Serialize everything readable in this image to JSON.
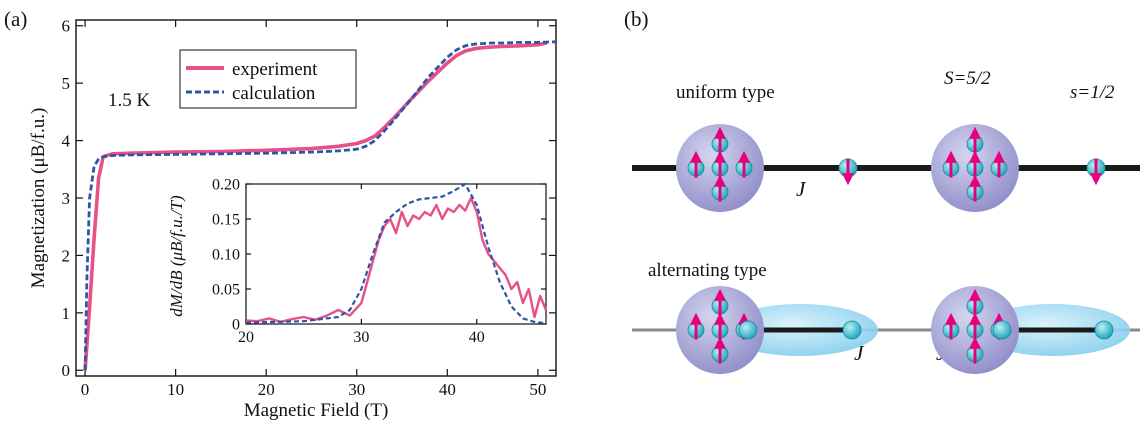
{
  "panel_a_label": "(a)",
  "panel_b_label": "(b)",
  "chart_data": [
    {
      "type": "line",
      "xlabel": "Magnetic Field  (T)",
      "ylabel": "Magnetization (μB/f.u.)",
      "xlim": [
        -1,
        52
      ],
      "ylim": [
        -0.1,
        6.1
      ],
      "xticks": [
        0,
        10,
        20,
        30,
        40,
        50
      ],
      "yticks": [
        0,
        1,
        2,
        3,
        4,
        5,
        6
      ],
      "annotation": "1.5 K",
      "legend": "top-center",
      "series": [
        {
          "name": "experiment",
          "color": "#e8508a",
          "style": "solid",
          "x": [
            0,
            0.5,
            1.0,
            1.5,
            2.0,
            3,
            5,
            10,
            15,
            20,
            25,
            28,
            30,
            31,
            32,
            33,
            34,
            36,
            38,
            40,
            41,
            42,
            43,
            44,
            45,
            46,
            48,
            50,
            51
          ],
          "y": [
            0,
            1.1,
            2.3,
            3.35,
            3.72,
            3.77,
            3.78,
            3.8,
            3.81,
            3.83,
            3.86,
            3.9,
            3.95,
            4.0,
            4.08,
            4.22,
            4.38,
            4.72,
            5.05,
            5.35,
            5.48,
            5.56,
            5.6,
            5.62,
            5.63,
            5.64,
            5.65,
            5.67,
            5.7
          ]
        },
        {
          "name": "calculation",
          "color": "#2f55a4",
          "style": "dashed",
          "x": [
            0,
            0.2,
            0.5,
            1.0,
            1.5,
            2,
            3,
            5,
            10,
            15,
            20,
            25,
            28,
            30,
            31,
            32,
            33,
            34,
            36,
            38,
            40,
            41,
            42,
            43,
            44,
            45,
            46,
            48,
            50,
            52
          ],
          "y": [
            0,
            1.6,
            3.0,
            3.55,
            3.68,
            3.72,
            3.74,
            3.75,
            3.76,
            3.77,
            3.78,
            3.8,
            3.82,
            3.85,
            3.9,
            4.0,
            4.16,
            4.34,
            4.72,
            5.12,
            5.45,
            5.58,
            5.65,
            5.68,
            5.69,
            5.7,
            5.7,
            5.71,
            5.71,
            5.72
          ]
        }
      ]
    },
    {
      "type": "line",
      "inset": true,
      "ylabel": "dM/dB (μB/f.u./T)",
      "xlim": [
        20,
        46
      ],
      "ylim": [
        0,
        0.2
      ],
      "xticks": [
        20,
        30,
        40
      ],
      "yticks": [
        0,
        0.05,
        0.1,
        0.15,
        0.2
      ],
      "ytick_labels": [
        "0",
        "0.05",
        "0.10",
        "0.15",
        "0.20"
      ],
      "series": [
        {
          "name": "experiment",
          "color": "#e8508a",
          "style": "solid",
          "x": [
            20,
            21,
            22,
            23,
            24,
            25,
            26,
            27,
            28,
            29,
            30,
            30.5,
            31,
            31.5,
            32,
            32.5,
            33,
            33.5,
            34,
            34.5,
            35,
            35.5,
            36,
            36.5,
            37,
            37.5,
            38,
            38.5,
            39,
            39.5,
            40,
            40.5,
            41,
            41.5,
            42,
            42.5,
            43,
            43.5,
            44,
            44.5,
            45,
            45.5,
            46
          ],
          "y": [
            0.005,
            0.004,
            0.008,
            0.003,
            0.007,
            0.01,
            0.006,
            0.012,
            0.02,
            0.012,
            0.03,
            0.06,
            0.09,
            0.12,
            0.14,
            0.15,
            0.13,
            0.16,
            0.14,
            0.155,
            0.15,
            0.16,
            0.155,
            0.17,
            0.15,
            0.165,
            0.16,
            0.17,
            0.162,
            0.18,
            0.16,
            0.12,
            0.1,
            0.09,
            0.08,
            0.07,
            0.05,
            0.06,
            0.03,
            0.05,
            0.01,
            0.04,
            0.02
          ]
        },
        {
          "name": "calculation",
          "color": "#2f55a4",
          "style": "dashed",
          "x": [
            20,
            25,
            28,
            29,
            30,
            31,
            32,
            33,
            34,
            35,
            36,
            37,
            38,
            39,
            40,
            41,
            42,
            43,
            44,
            45,
            46
          ],
          "y": [
            0.002,
            0.004,
            0.01,
            0.02,
            0.05,
            0.1,
            0.145,
            0.16,
            0.172,
            0.178,
            0.18,
            0.182,
            0.19,
            0.2,
            0.17,
            0.11,
            0.06,
            0.025,
            0.008,
            0.003,
            0.001
          ]
        }
      ]
    }
  ],
  "diagram": {
    "uniform_label": "uniform type",
    "alternating_label": "alternating type",
    "big_spin_label": "S=5/2",
    "small_spin_label": "s=1/2",
    "J_label": "J",
    "J_prime_label": "J’",
    "colors": {
      "arrow": "#e6007e",
      "site": "#3bbcd0",
      "big_sphere": "#8e8cc8",
      "dimer": "#8fd4f0",
      "chain_uniform": "#1a1a1a",
      "chain_alternating": "#888888"
    }
  }
}
